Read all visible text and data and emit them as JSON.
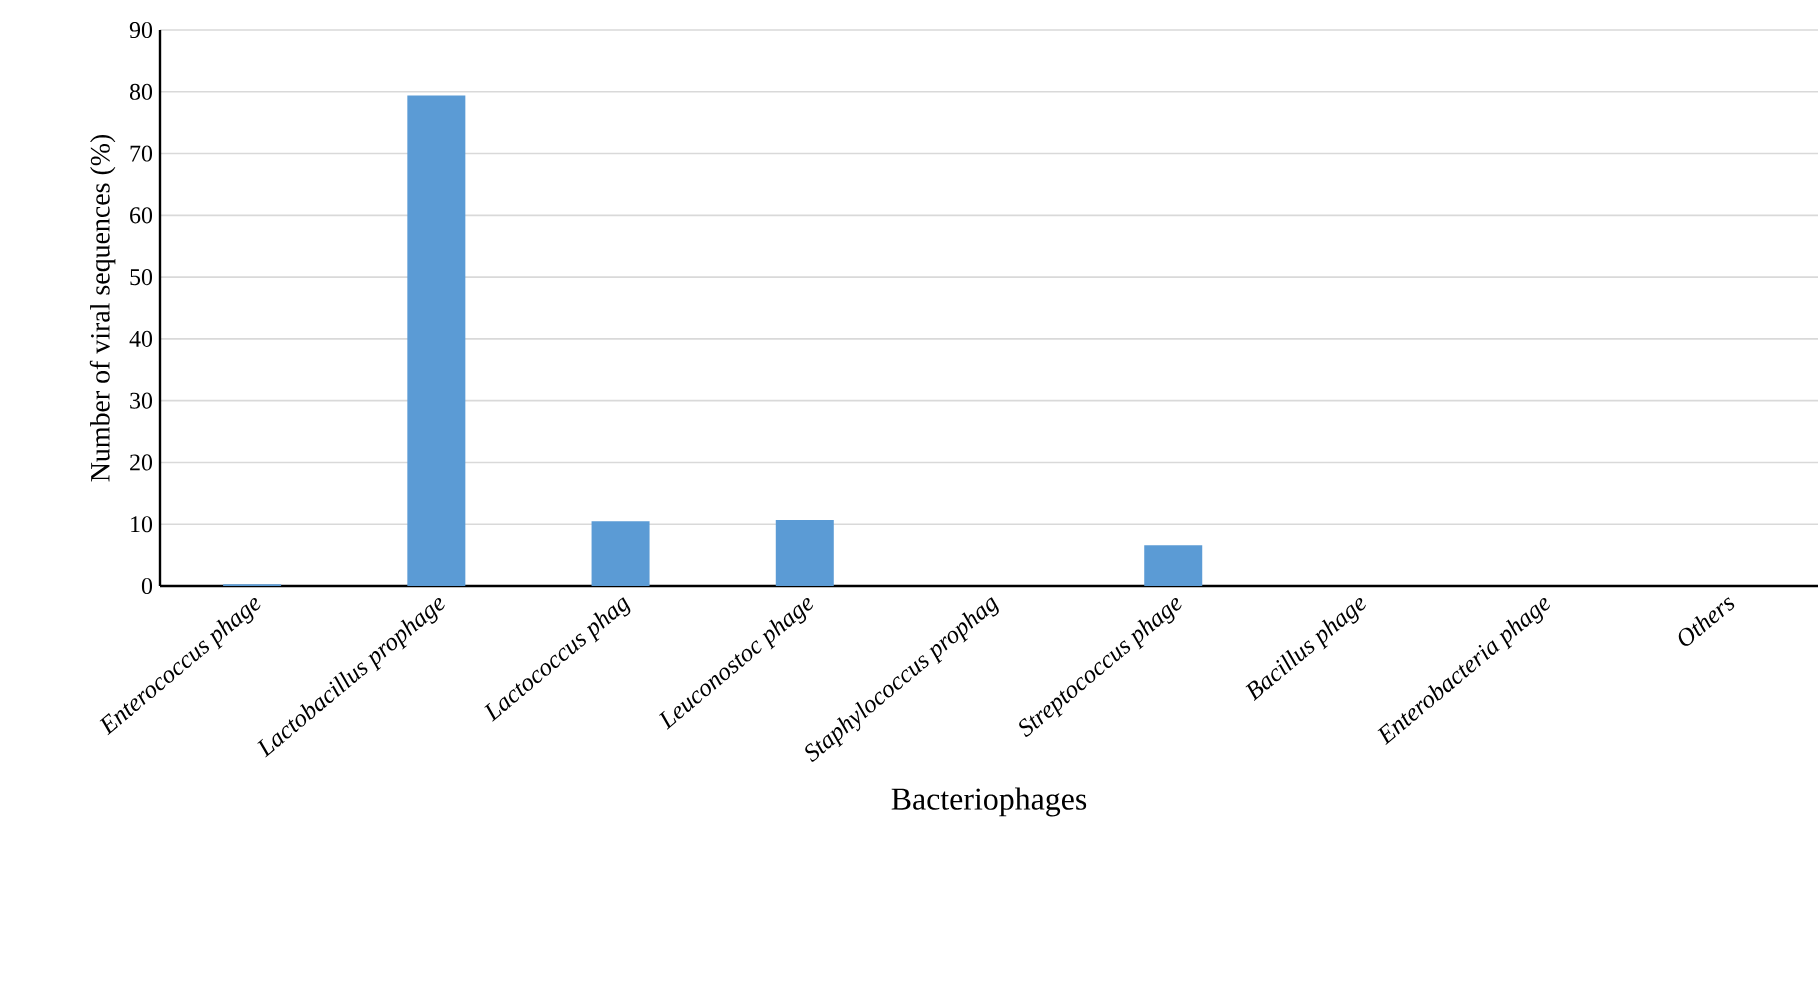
{
  "chart_data": {
    "type": "bar",
    "xlabel": "Bacteriophages",
    "ylabel": "Number of viral sequences (%)",
    "categories": [
      "Enterococcus phage",
      "Lactobacillus prophage",
      "Lactococcus phag",
      "Leuconostoc phage",
      "Staphylococcus prophag",
      "Streptococcus phage",
      "Bacillus phage",
      "Enterobacteria phage",
      "Others"
    ],
    "values": [
      0.3,
      79.4,
      10.5,
      10.7,
      0,
      6.6,
      0,
      0,
      0
    ],
    "color": "#5b9bd5",
    "ylim": [
      0,
      90
    ],
    "yticks": [
      0,
      10,
      20,
      30,
      40,
      50,
      60,
      70,
      80,
      90
    ],
    "grid": "y"
  }
}
